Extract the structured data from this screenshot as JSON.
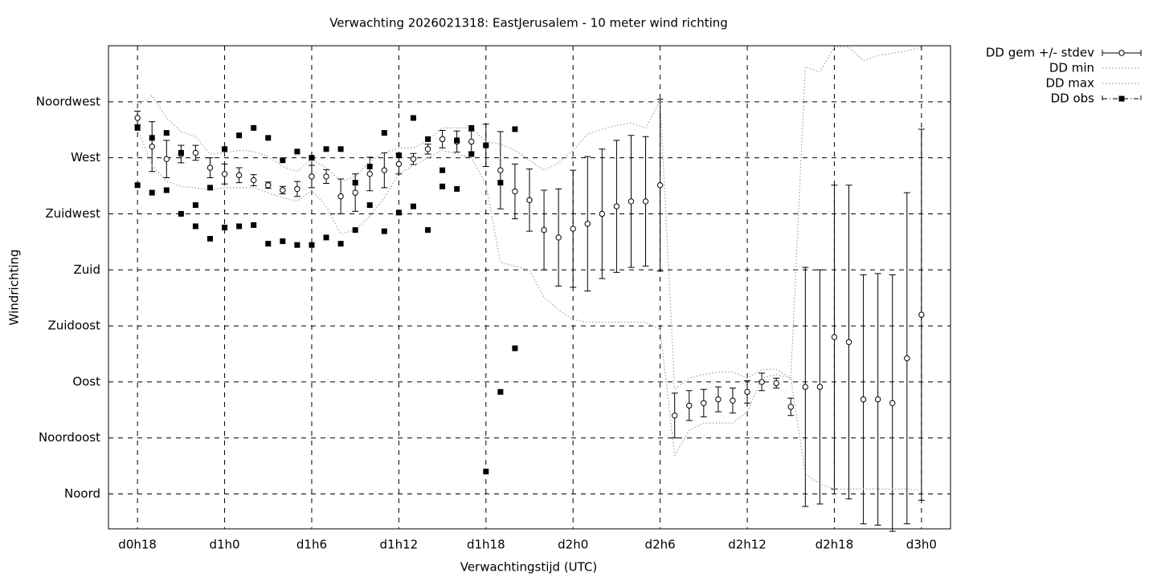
{
  "chart_data": {
    "type": "errorbar",
    "title": "Verwachting 2026021318: EastJerusalem - 10 meter wind richting",
    "xlabel": "Verwachtingstijd (UTC)",
    "ylabel": "Windrichting",
    "xlim": [
      16,
      74
    ],
    "ylim": [
      -28,
      360
    ],
    "grid": true,
    "legend": "outside-top-right",
    "xticks": [
      {
        "value": 18,
        "label": "d0h18"
      },
      {
        "value": 24,
        "label": "d1h0"
      },
      {
        "value": 30,
        "label": "d1h6"
      },
      {
        "value": 36,
        "label": "d1h12"
      },
      {
        "value": 42,
        "label": "d1h18"
      },
      {
        "value": 48,
        "label": "d2h0"
      },
      {
        "value": 54,
        "label": "d2h6"
      },
      {
        "value": 60,
        "label": "d2h12"
      },
      {
        "value": 66,
        "label": "d2h18"
      },
      {
        "value": 72,
        "label": "d3h0"
      }
    ],
    "yticks": [
      {
        "value": 0,
        "label": "Noord"
      },
      {
        "value": 45,
        "label": "Noordoost"
      },
      {
        "value": 90,
        "label": "Oost"
      },
      {
        "value": 135,
        "label": "Zuidoost"
      },
      {
        "value": 180,
        "label": "Zuid"
      },
      {
        "value": 225,
        "label": "Zuidwest"
      },
      {
        "value": 270,
        "label": "West"
      },
      {
        "value": 315,
        "label": "Noordwest"
      }
    ],
    "x": [
      18,
      19,
      20,
      21,
      22,
      23,
      24,
      25,
      26,
      27,
      28,
      29,
      30,
      31,
      32,
      33,
      34,
      35,
      36,
      37,
      38,
      39,
      40,
      41,
      42,
      43,
      44,
      45,
      46,
      47,
      48,
      49,
      50,
      51,
      52,
      53,
      54,
      55,
      56,
      57,
      58,
      59,
      60,
      61,
      62,
      63,
      64,
      65,
      66,
      67,
      68,
      69,
      70,
      71,
      72
    ],
    "series": [
      {
        "name": "DD gem +/- stdev",
        "marker": "circle",
        "color": "#000000",
        "values": [
          302,
          279,
          269,
          273,
          274,
          262,
          257,
          256,
          252,
          248,
          244,
          245,
          255,
          255,
          239,
          242,
          257,
          260,
          265,
          269,
          277,
          285,
          283,
          283,
          280,
          260,
          243,
          236,
          212,
          206,
          213,
          217,
          225,
          231,
          235,
          235,
          248,
          63,
          71,
          73,
          76,
          75,
          82,
          90,
          89,
          70,
          86,
          86,
          126,
          122,
          76,
          76,
          73,
          109,
          144
        ],
        "errors": [
          5.5,
          20,
          15,
          7,
          6,
          8,
          8,
          6,
          4.5,
          2.5,
          3,
          6,
          9,
          5.5,
          14,
          15,
          13.5,
          14,
          8,
          4.5,
          4,
          7,
          8.5,
          8.5,
          17,
          31,
          22,
          25,
          32,
          39,
          47,
          54,
          52,
          53,
          53,
          52,
          69,
          18,
          12,
          11,
          10,
          10,
          9,
          7,
          4,
          7,
          96,
          94,
          122,
          126,
          100,
          101,
          103,
          133,
          149
        ]
      },
      {
        "name": "DD min",
        "marker": "none",
        "color": "#a0a0a0",
        "values": [
          293,
          264,
          251,
          247,
          246,
          244,
          246,
          246,
          246,
          242,
          238,
          235,
          244,
          231,
          209,
          212,
          223,
          238,
          257,
          264,
          270,
          276,
          273,
          270,
          249,
          186,
          183,
          180,
          158,
          148,
          140,
          138,
          138,
          138,
          138,
          138,
          132,
          31,
          51,
          57,
          57,
          57,
          66,
          93,
          96,
          93,
          16,
          8,
          4,
          4,
          4,
          4,
          4,
          4,
          3
        ]
      },
      {
        "name": "DD max",
        "marker": "none",
        "color": "#a0a0a0",
        "values": [
          312,
          320,
          302,
          291,
          287,
          273,
          274,
          276,
          275,
          271,
          263,
          259,
          269,
          262,
          251,
          255,
          267,
          274,
          278,
          278,
          284,
          294,
          294,
          294,
          283,
          281,
          276,
          268,
          260,
          266,
          276,
          289,
          293,
          296,
          298,
          294,
          316,
          84,
          93,
          96,
          98,
          98,
          93,
          100,
          100,
          93,
          343,
          339,
          359,
          359,
          348,
          352,
          354,
          356,
          359
        ]
      },
      {
        "name": "DD obs",
        "marker": "square",
        "color": "#000000",
        "x": [
          18,
          18,
          19,
          19,
          20,
          20,
          21,
          21,
          22,
          22,
          23,
          23,
          24,
          24,
          25,
          25,
          26,
          26,
          27,
          27,
          28,
          28,
          29,
          29,
          30,
          30,
          31,
          31,
          32,
          32,
          33,
          33,
          34,
          34,
          35,
          35,
          36,
          36,
          37,
          37,
          38,
          38,
          39,
          39,
          40,
          40,
          41,
          41,
          42,
          42,
          43,
          43,
          44,
          44
        ],
        "values": [
          294,
          248,
          286,
          242,
          290,
          244,
          274,
          225,
          232,
          215,
          246,
          205,
          277,
          214,
          288,
          215,
          294,
          216,
          286,
          201,
          268,
          203,
          275,
          200,
          270,
          200,
          277,
          206,
          277,
          201,
          250,
          212,
          263,
          232,
          290,
          211,
          272,
          226,
          302,
          231,
          285,
          212,
          260,
          247,
          284,
          245,
          294,
          273,
          280,
          18,
          250,
          82,
          293,
          117
        ]
      }
    ]
  }
}
